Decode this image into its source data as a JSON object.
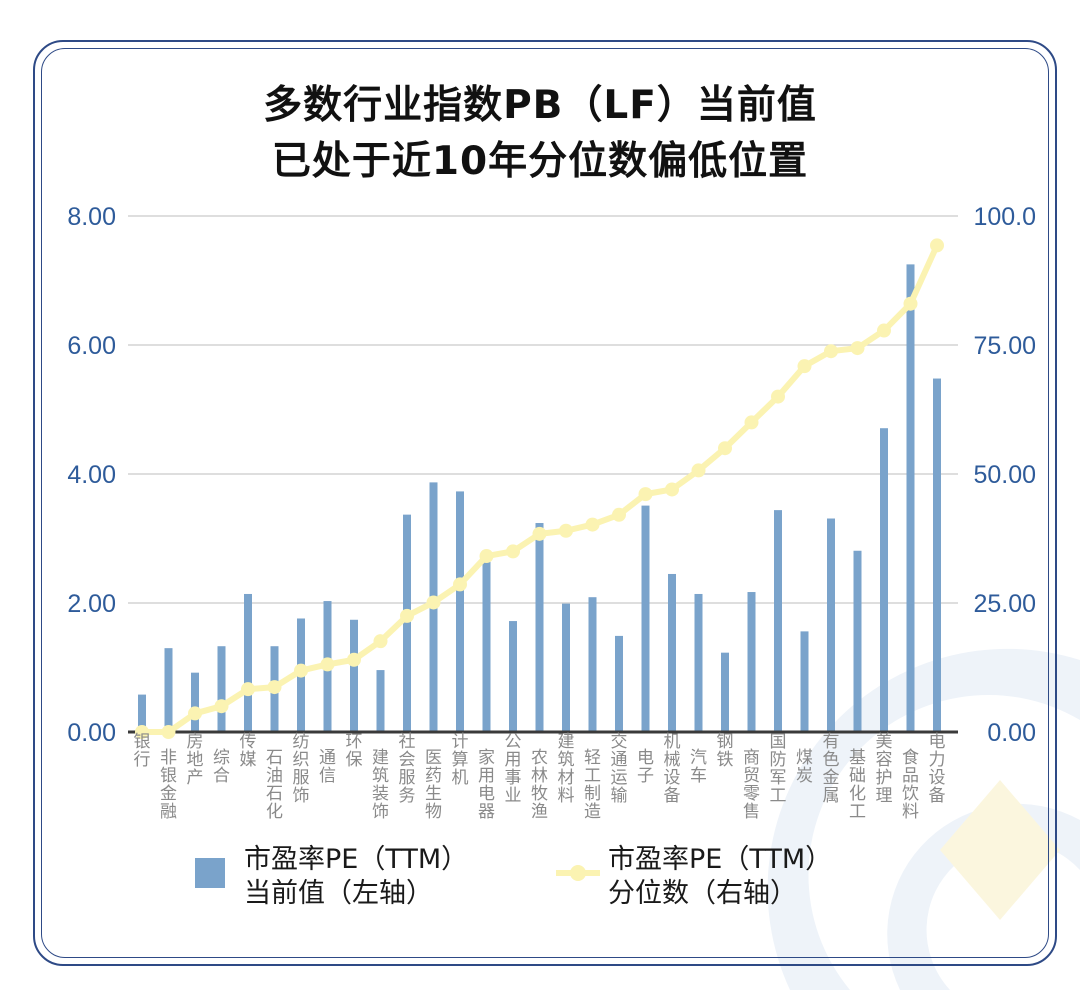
{
  "title_line1": "多数行业指数PB（LF）当前值",
  "title_line2": "已处于近10年分位数偏低位置",
  "legend": {
    "bar_line1": "市盈率PE（TTM）",
    "bar_line2": "当前值（左轴）",
    "line_line1": "市盈率PE（TTM）",
    "line_line2": "分位数（右轴）"
  },
  "colors": {
    "bar": "#7aa3cb",
    "line": "#fbf3b2",
    "axis_text": "#2e5b9a",
    "grid": "#c9c9c9",
    "frame": "#2e4a86"
  },
  "chart_data": {
    "type": "bar",
    "categories": [
      "银行",
      "非银金融",
      "房地产",
      "综合",
      "传媒",
      "石油石化",
      "纺织服饰",
      "通信",
      "环保",
      "建筑装饰",
      "社会服务",
      "医药生物",
      "计算机",
      "家用电器",
      "公用事业",
      "农林牧渔",
      "建筑材料",
      "轻工制造",
      "交通运输",
      "电子",
      "机械设备",
      "汽车",
      "钢铁",
      "商贸零售",
      "国防军工",
      "煤炭",
      "有色金属",
      "基础化工",
      "美容护理",
      "食品饮料",
      "电力设备"
    ],
    "series": [
      {
        "name": "市盈率PE（TTM）当前值（左轴）",
        "type": "bar",
        "axis": "left",
        "values": [
          0.58,
          1.3,
          0.92,
          1.33,
          2.14,
          1.33,
          1.76,
          2.03,
          1.74,
          0.96,
          3.37,
          3.87,
          3.73,
          2.69,
          1.72,
          3.24,
          1.99,
          2.09,
          1.49,
          3.51,
          2.45,
          2.14,
          1.23,
          2.17,
          3.44,
          1.56,
          3.31,
          2.81,
          4.71,
          7.25,
          5.48
        ]
      },
      {
        "name": "市盈率PE（TTM）分位数（右轴）",
        "type": "line",
        "axis": "right",
        "values": [
          0.0,
          0.0,
          3.6,
          5.0,
          8.3,
          8.7,
          11.9,
          13.1,
          14.0,
          17.6,
          22.5,
          25.1,
          28.6,
          34.1,
          35.0,
          38.4,
          39.0,
          40.2,
          42.1,
          46.1,
          47.0,
          50.7,
          55.0,
          60.0,
          65.0,
          70.9,
          73.8,
          74.4,
          77.8,
          83.0,
          94.3
        ]
      }
    ],
    "y_left": {
      "range": [
        0,
        8
      ],
      "ticks": [
        "0.00",
        "2.00",
        "4.00",
        "6.00",
        "8.00"
      ]
    },
    "y_right": {
      "range": [
        0,
        100
      ],
      "ticks": [
        "0.00",
        "25.00",
        "50.00",
        "75.00",
        "100.0"
      ]
    },
    "grid": true,
    "legend_position": "bottom"
  }
}
